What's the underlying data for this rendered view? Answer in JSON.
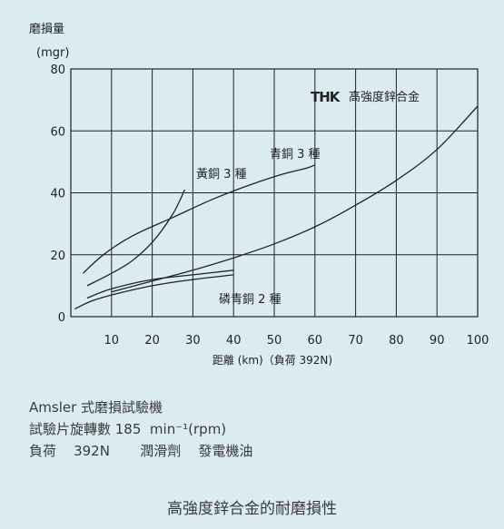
{
  "chart_data": {
    "type": "line",
    "ylabel": "磨損量",
    "yunit": "(mgr)",
    "xlabel": "距離 (km)（負荷 392N)",
    "xlim": [
      0,
      100
    ],
    "ylim": [
      0,
      80
    ],
    "xticks": [
      10,
      20,
      30,
      40,
      50,
      60,
      70,
      80,
      90,
      100
    ],
    "yticks": [
      0,
      20,
      40,
      60,
      80
    ],
    "grid": true,
    "series": [
      {
        "name": "THK 高強度鋅合金",
        "color": "#222222",
        "x": [
          10,
          20,
          30,
          40,
          50,
          60,
          70,
          80,
          90,
          100
        ],
        "y": [
          8,
          11.5,
          15,
          19,
          23.5,
          29,
          36,
          44,
          54,
          68
        ]
      },
      {
        "name": "黃銅 3 種",
        "color": "#222222",
        "x": [
          4,
          10,
          15,
          20,
          25,
          28
        ],
        "y": [
          10,
          14,
          18,
          24,
          33,
          41
        ]
      },
      {
        "name": "青銅 3 種",
        "color": "#222222",
        "x": [
          3,
          8,
          15,
          25,
          35,
          45,
          52,
          58,
          60
        ],
        "y": [
          14,
          20,
          26,
          32,
          38,
          43,
          46,
          48,
          49
        ]
      },
      {
        "name": "磷青銅 2 種",
        "color": "#222222",
        "x": [
          4,
          10,
          20,
          30,
          40
        ],
        "y": [
          6,
          9,
          12,
          13.5,
          15
        ]
      },
      {
        "name": "",
        "color": "#222222",
        "x": [
          1,
          5,
          10,
          20,
          30,
          40
        ],
        "y": [
          2.5,
          5,
          7,
          10,
          12,
          13.5
        ]
      }
    ],
    "annotations": [
      {
        "text": "黃銅 3 種",
        "series": 1
      },
      {
        "text": "青銅 3 種",
        "series": 2
      },
      {
        "text": "磷青銅 2 種",
        "series": 3
      },
      {
        "text": "高強度鋅合金",
        "series": 0,
        "logo": "THK"
      }
    ]
  },
  "notes": {
    "line1": "Amsler 式磨損試驗機",
    "line2": "試驗片旋轉數 185  min⁻¹(rpm)",
    "line3": "負荷    392N       潤滑劑    發電機油"
  },
  "caption": "高強度鋅合金的耐磨損性"
}
